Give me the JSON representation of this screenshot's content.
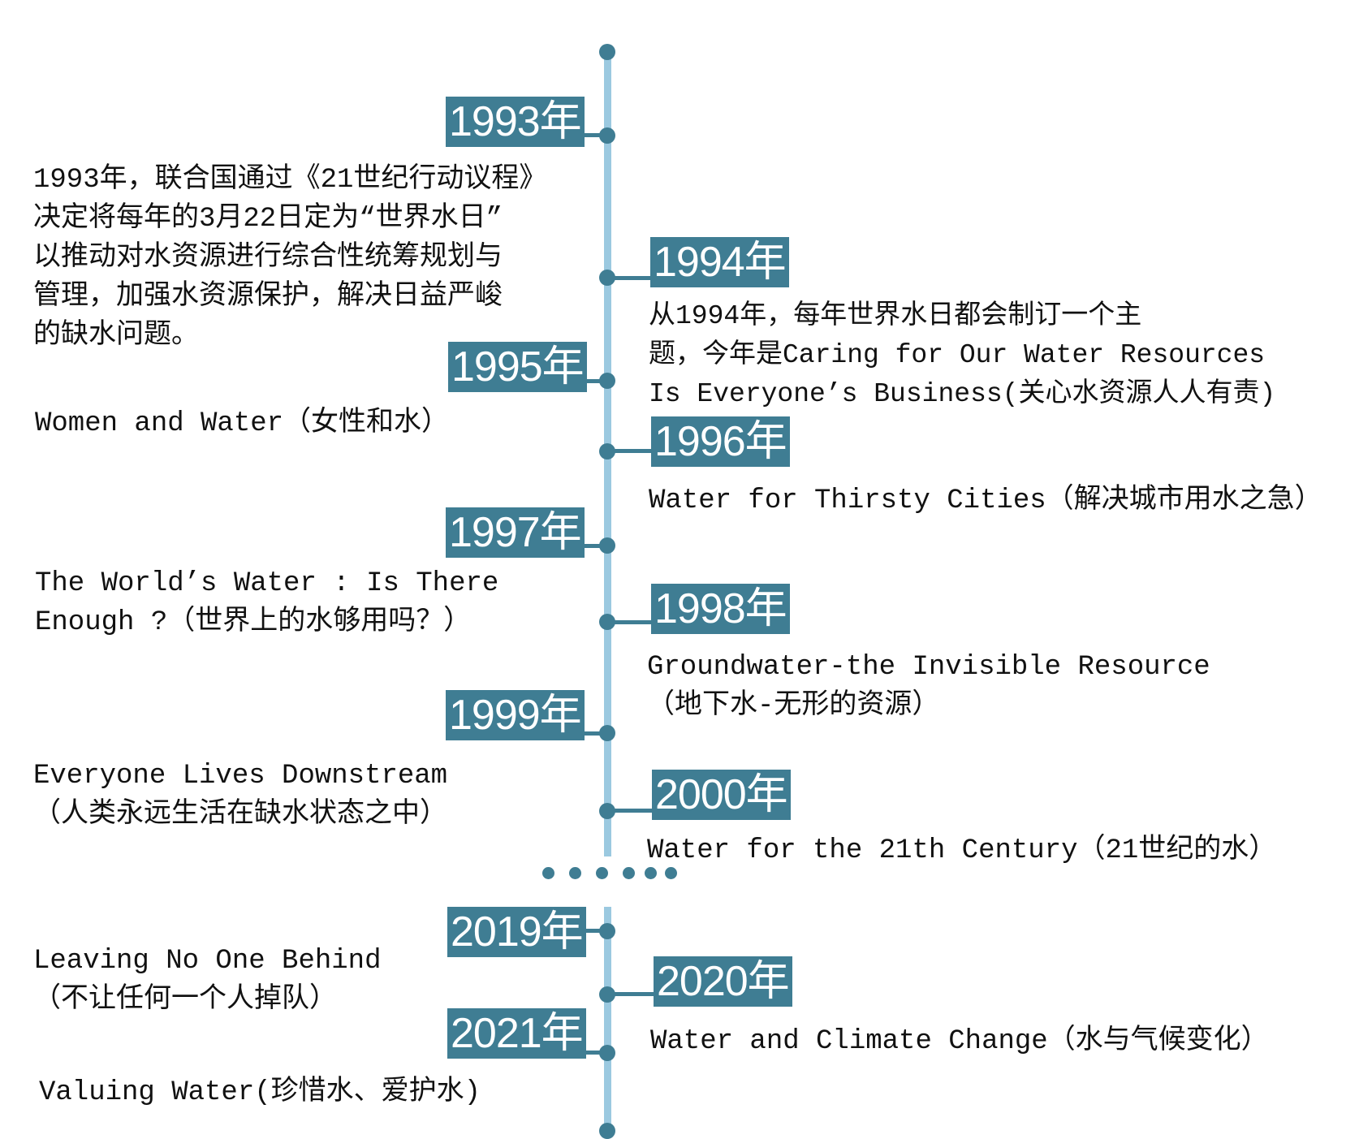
{
  "timeline": {
    "colors": {
      "axis": "#9bc9e0",
      "accent": "#3f7d93",
      "text": "#111111"
    },
    "gap_marker": "dotted",
    "entries": [
      {
        "year": "1993年",
        "side": "left",
        "lines": [
          "1993年，联合国通过《21世纪行动议程》",
          "决定将每年的3月22日定为“世界水日”",
          "以推动对水资源进行综合性统筹规划与",
          "管理，加强水资源保护，解决日益严峻",
          "的缺水问题。"
        ]
      },
      {
        "year": "1994年",
        "side": "right",
        "lines": [
          "从1994年，每年世界水日都会制订一个主",
          "题，今年是Caring for Our Water Resources",
          "Is Everyone’s Business(关心水资源人人有责)"
        ]
      },
      {
        "year": "1995年",
        "side": "left",
        "lines": [
          "Women and Water（女性和水）"
        ]
      },
      {
        "year": "1996年",
        "side": "right",
        "lines": [
          "Water for Thirsty Cities（解决城市用水之急）"
        ]
      },
      {
        "year": "1997年",
        "side": "left",
        "lines": [
          "The World’s Water : Is There",
          "Enough ?（世界上的水够用吗？）"
        ]
      },
      {
        "year": "1998年",
        "side": "right",
        "lines": [
          "Groundwater-the Invisible Resource",
          "（地下水-无形的资源）"
        ]
      },
      {
        "year": "1999年",
        "side": "left",
        "lines": [
          "Everyone Lives Downstream",
          "（人类永远生活在缺水状态之中）"
        ]
      },
      {
        "year": "2000年",
        "side": "right",
        "lines": [
          "Water for the 21th Century（21世纪的水）"
        ]
      },
      {
        "year": "2019年",
        "side": "left",
        "lines": [
          "Leaving No One Behind",
          "（不让任何一个人掉队）"
        ]
      },
      {
        "year": "2020年",
        "side": "right",
        "lines": [
          "Water and Climate Change（水与气候变化）"
        ]
      },
      {
        "year": "2021年",
        "side": "left",
        "lines": [
          "Valuing Water(珍惜水、爱护水)"
        ]
      }
    ]
  }
}
